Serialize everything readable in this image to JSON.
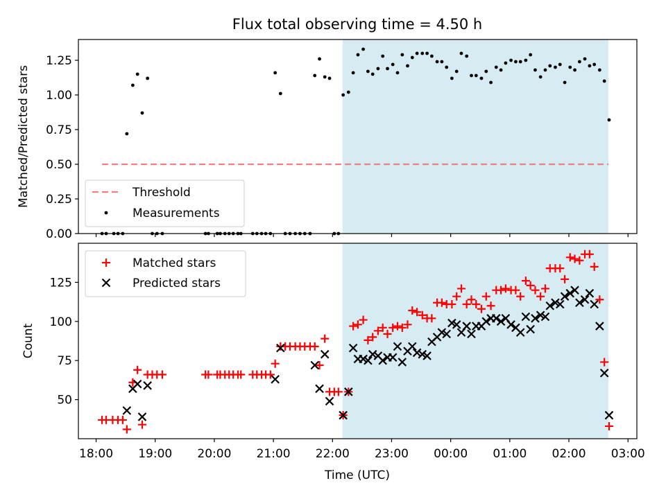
{
  "title": "Flux total observing time = 4.50 h",
  "xlabel": "Time (UTC)",
  "x_ticks": [
    "18:00",
    "19:00",
    "20:00",
    "21:00",
    "22:00",
    "23:00",
    "00:00",
    "01:00",
    "02:00",
    "03:00"
  ],
  "colors": {
    "threshold": "#f08080",
    "shade": "#add8e6",
    "matched": "#ff0000",
    "predicted": "#000000",
    "measurements": "#000000"
  },
  "chart_data": [
    {
      "type": "scatter",
      "title": "Flux total observing time = 4.50 h",
      "xlabel": "",
      "ylabel": "Matched/Predicted stars",
      "x_unit": "hours since 18:00 UTC",
      "xlim": [
        17.7,
        27.15
      ],
      "ylim": [
        0,
        1.4
      ],
      "y_ticks": [
        "0.00",
        "0.25",
        "0.50",
        "0.75",
        "1.00",
        "1.25"
      ],
      "grid": false,
      "legend": "lower-left",
      "shaded_region": {
        "from": 22.17,
        "to": 26.67
      },
      "threshold": {
        "name": "Threshold",
        "value": 0.5,
        "from": 18.1,
        "to": 26.67
      },
      "series": [
        {
          "name": "Measurements",
          "points": [
            [
              18.1,
              0
            ],
            [
              18.17,
              0
            ],
            [
              18.3,
              0
            ],
            [
              18.37,
              0
            ],
            [
              18.45,
              0
            ],
            [
              18.52,
              0.72
            ],
            [
              18.62,
              1.07
            ],
            [
              18.7,
              1.15
            ],
            [
              18.78,
              0.87
            ],
            [
              18.87,
              1.12
            ],
            [
              18.95,
              0
            ],
            [
              19.03,
              0
            ],
            [
              19.12,
              0
            ],
            [
              19.85,
              0
            ],
            [
              19.9,
              0
            ],
            [
              20.05,
              0
            ],
            [
              20.1,
              0
            ],
            [
              20.18,
              0
            ],
            [
              20.25,
              0
            ],
            [
              20.32,
              0
            ],
            [
              20.4,
              0
            ],
            [
              20.45,
              0
            ],
            [
              20.65,
              0
            ],
            [
              20.72,
              0
            ],
            [
              20.8,
              0
            ],
            [
              20.87,
              0
            ],
            [
              20.95,
              0
            ],
            [
              21.03,
              1.16
            ],
            [
              21.12,
              1.01
            ],
            [
              21.2,
              0
            ],
            [
              21.28,
              0
            ],
            [
              21.37,
              0
            ],
            [
              21.45,
              0
            ],
            [
              21.53,
              0
            ],
            [
              21.62,
              0
            ],
            [
              21.7,
              1.14
            ],
            [
              21.78,
              1.26
            ],
            [
              21.87,
              1.13
            ],
            [
              21.95,
              1.12
            ],
            [
              22.03,
              0
            ],
            [
              22.1,
              0
            ],
            [
              22.18,
              1.0
            ],
            [
              22.27,
              1.02
            ],
            [
              22.35,
              1.16
            ],
            [
              22.43,
              1.29
            ],
            [
              22.52,
              1.33
            ],
            [
              22.6,
              1.17
            ],
            [
              22.68,
              1.15
            ],
            [
              22.77,
              1.19
            ],
            [
              22.85,
              1.28
            ],
            [
              22.93,
              1.19
            ],
            [
              23.02,
              1.22
            ],
            [
              23.1,
              1.16
            ],
            [
              23.18,
              1.29
            ],
            [
              23.27,
              1.21
            ],
            [
              23.35,
              1.27
            ],
            [
              23.43,
              1.3
            ],
            [
              23.52,
              1.3
            ],
            [
              23.6,
              1.3
            ],
            [
              23.68,
              1.28
            ],
            [
              23.77,
              1.24
            ],
            [
              23.85,
              1.24
            ],
            [
              23.93,
              1.2
            ],
            [
              24.02,
              1.12
            ],
            [
              24.1,
              1.17
            ],
            [
              24.18,
              1.3
            ],
            [
              24.27,
              1.28
            ],
            [
              24.35,
              1.14
            ],
            [
              24.43,
              1.14
            ],
            [
              24.52,
              1.12
            ],
            [
              24.6,
              1.17
            ],
            [
              24.68,
              1.09
            ],
            [
              24.77,
              1.2
            ],
            [
              24.85,
              1.18
            ],
            [
              24.93,
              1.23
            ],
            [
              25.02,
              1.25
            ],
            [
              25.1,
              1.24
            ],
            [
              25.18,
              1.24
            ],
            [
              25.27,
              1.25
            ],
            [
              25.35,
              1.29
            ],
            [
              25.43,
              1.18
            ],
            [
              25.52,
              1.13
            ],
            [
              25.6,
              1.18
            ],
            [
              25.68,
              1.21
            ],
            [
              25.77,
              1.2
            ],
            [
              25.85,
              1.22
            ],
            [
              25.93,
              1.09
            ],
            [
              26.02,
              1.2
            ],
            [
              26.1,
              1.18
            ],
            [
              26.18,
              1.24
            ],
            [
              26.27,
              1.26
            ],
            [
              26.35,
              1.21
            ],
            [
              26.43,
              1.22
            ],
            [
              26.52,
              1.18
            ],
            [
              26.6,
              1.1
            ],
            [
              26.68,
              0.82
            ]
          ]
        }
      ]
    },
    {
      "type": "scatter",
      "title": "",
      "xlabel": "Time (UTC)",
      "ylabel": "Count",
      "x_unit": "hours since 18:00 UTC",
      "xlim": [
        17.7,
        27.15
      ],
      "ylim": [
        25,
        150
      ],
      "y_ticks": [
        "50",
        "75",
        "100",
        "125"
      ],
      "grid": false,
      "legend": "top-left",
      "shaded_region": {
        "from": 22.17,
        "to": 26.67
      },
      "series": [
        {
          "name": "Matched stars",
          "points": [
            [
              18.1,
              37
            ],
            [
              18.17,
              37
            ],
            [
              18.28,
              37
            ],
            [
              18.37,
              37
            ],
            [
              18.45,
              37
            ],
            [
              18.52,
              31
            ],
            [
              18.62,
              61
            ],
            [
              18.7,
              69
            ],
            [
              18.78,
              34
            ],
            [
              18.87,
              66
            ],
            [
              18.95,
              66
            ],
            [
              19.03,
              66
            ],
            [
              19.12,
              66
            ],
            [
              19.85,
              66
            ],
            [
              19.9,
              66
            ],
            [
              20.05,
              66
            ],
            [
              20.1,
              66
            ],
            [
              20.18,
              66
            ],
            [
              20.25,
              66
            ],
            [
              20.32,
              66
            ],
            [
              20.4,
              66
            ],
            [
              20.45,
              66
            ],
            [
              20.65,
              66
            ],
            [
              20.72,
              66
            ],
            [
              20.8,
              66
            ],
            [
              20.87,
              66
            ],
            [
              20.95,
              66
            ],
            [
              21.03,
              73
            ],
            [
              21.12,
              84
            ],
            [
              21.2,
              84
            ],
            [
              21.28,
              84
            ],
            [
              21.37,
              84
            ],
            [
              21.45,
              84
            ],
            [
              21.53,
              84
            ],
            [
              21.62,
              84
            ],
            [
              21.7,
              84
            ],
            [
              21.78,
              72
            ],
            [
              21.87,
              89
            ],
            [
              21.95,
              55
            ],
            [
              22.03,
              55
            ],
            [
              22.1,
              55
            ],
            [
              22.18,
              40
            ],
            [
              22.27,
              55
            ],
            [
              22.35,
              97
            ],
            [
              22.43,
              98
            ],
            [
              22.52,
              101
            ],
            [
              22.6,
              88
            ],
            [
              22.68,
              90
            ],
            [
              22.77,
              94
            ],
            [
              22.85,
              96
            ],
            [
              22.93,
              92
            ],
            [
              23.02,
              96
            ],
            [
              23.1,
              97
            ],
            [
              23.18,
              96
            ],
            [
              23.27,
              98
            ],
            [
              23.35,
              107
            ],
            [
              23.43,
              106
            ],
            [
              23.52,
              104
            ],
            [
              23.6,
              102
            ],
            [
              23.68,
              102
            ],
            [
              23.77,
              112
            ],
            [
              23.85,
              112
            ],
            [
              23.93,
              111
            ],
            [
              24.02,
              111
            ],
            [
              24.1,
              116
            ],
            [
              24.18,
              121
            ],
            [
              24.27,
              111
            ],
            [
              24.35,
              114
            ],
            [
              24.43,
              111
            ],
            [
              24.52,
              108
            ],
            [
              24.6,
              116
            ],
            [
              24.68,
              110
            ],
            [
              24.77,
              120
            ],
            [
              24.85,
              120
            ],
            [
              24.93,
              121
            ],
            [
              25.02,
              120
            ],
            [
              25.1,
              120
            ],
            [
              25.18,
              116
            ],
            [
              25.27,
              126
            ],
            [
              25.35,
              123
            ],
            [
              25.43,
              120
            ],
            [
              25.52,
              116
            ],
            [
              25.6,
              121
            ],
            [
              25.68,
              134
            ],
            [
              25.77,
              134
            ],
            [
              25.85,
              134
            ],
            [
              25.93,
              127
            ],
            [
              26.02,
              141
            ],
            [
              26.1,
              140
            ],
            [
              26.18,
              139
            ],
            [
              26.27,
              143
            ],
            [
              26.35,
              143
            ],
            [
              26.43,
              135
            ],
            [
              26.52,
              114
            ],
            [
              26.6,
              74
            ],
            [
              26.68,
              33
            ]
          ]
        },
        {
          "name": "Predicted stars",
          "points": [
            [
              18.52,
              43
            ],
            [
              18.62,
              57
            ],
            [
              18.7,
              60
            ],
            [
              18.78,
              39
            ],
            [
              18.87,
              59
            ],
            [
              21.03,
              63
            ],
            [
              21.12,
              83
            ],
            [
              21.7,
              72
            ],
            [
              21.78,
              57
            ],
            [
              21.87,
              79
            ],
            [
              21.95,
              49
            ],
            [
              22.18,
              40
            ],
            [
              22.27,
              55
            ],
            [
              22.35,
              83
            ],
            [
              22.43,
              76
            ],
            [
              22.52,
              76
            ],
            [
              22.6,
              75
            ],
            [
              22.68,
              79
            ],
            [
              22.77,
              78
            ],
            [
              22.85,
              75
            ],
            [
              22.93,
              77
            ],
            [
              23.02,
              77
            ],
            [
              23.1,
              84
            ],
            [
              23.18,
              74
            ],
            [
              23.27,
              81
            ],
            [
              23.35,
              84
            ],
            [
              23.43,
              80
            ],
            [
              23.52,
              79
            ],
            [
              23.6,
              78
            ],
            [
              23.68,
              87
            ],
            [
              23.77,
              90
            ],
            [
              23.85,
              93
            ],
            [
              23.93,
              92
            ],
            [
              24.02,
              99
            ],
            [
              24.1,
              98
            ],
            [
              24.18,
              93
            ],
            [
              24.27,
              97
            ],
            [
              24.35,
              92
            ],
            [
              24.43,
              97
            ],
            [
              24.52,
              97
            ],
            [
              24.6,
              100
            ],
            [
              24.68,
              102
            ],
            [
              24.77,
              102
            ],
            [
              24.85,
              100
            ],
            [
              24.93,
              102
            ],
            [
              25.02,
              98
            ],
            [
              25.1,
              96
            ],
            [
              25.18,
              93
            ],
            [
              25.27,
              103
            ],
            [
              25.35,
              95
            ],
            [
              25.43,
              102
            ],
            [
              25.52,
              104
            ],
            [
              25.6,
              103
            ],
            [
              25.68,
              110
            ],
            [
              25.77,
              112
            ],
            [
              25.85,
              111
            ],
            [
              25.93,
              116
            ],
            [
              26.02,
              118
            ],
            [
              26.1,
              120
            ],
            [
              26.18,
              112
            ],
            [
              26.27,
              114
            ],
            [
              26.35,
              118
            ],
            [
              26.43,
              111
            ],
            [
              26.52,
              97
            ],
            [
              26.6,
              67
            ],
            [
              26.68,
              40
            ]
          ]
        }
      ]
    }
  ]
}
